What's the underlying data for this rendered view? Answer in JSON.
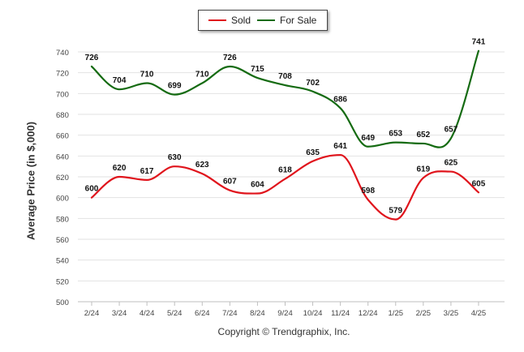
{
  "chart_data": {
    "type": "line",
    "categories": [
      "2/24",
      "3/24",
      "4/24",
      "5/24",
      "6/24",
      "7/24",
      "8/24",
      "9/24",
      "10/24",
      "11/24",
      "12/24",
      "1/25",
      "2/25",
      "3/25",
      "4/25"
    ],
    "series": [
      {
        "name": "Sold",
        "color": "#e0141c",
        "values": [
          600,
          620,
          617,
          630,
          623,
          607,
          604,
          618,
          635,
          641,
          598,
          579,
          619,
          625,
          605
        ]
      },
      {
        "name": "For Sale",
        "color": "#156b12",
        "values": [
          726,
          704,
          710,
          699,
          710,
          726,
          715,
          708,
          702,
          686,
          649,
          653,
          652,
          657,
          741
        ]
      }
    ],
    "ylabel": "Average Price (in $,000)",
    "ylim": [
      500,
      740
    ],
    "yticks": [
      500,
      520,
      540,
      560,
      580,
      600,
      620,
      640,
      660,
      680,
      700,
      720,
      740
    ],
    "grid": true,
    "legend_position": "top-center"
  },
  "legend": [
    {
      "label": "Sold",
      "color": "#e0141c"
    },
    {
      "label": "For Sale",
      "color": "#156b12"
    }
  ],
  "footer": {
    "copyright": "Copyright © Trendgraphix, Inc."
  }
}
